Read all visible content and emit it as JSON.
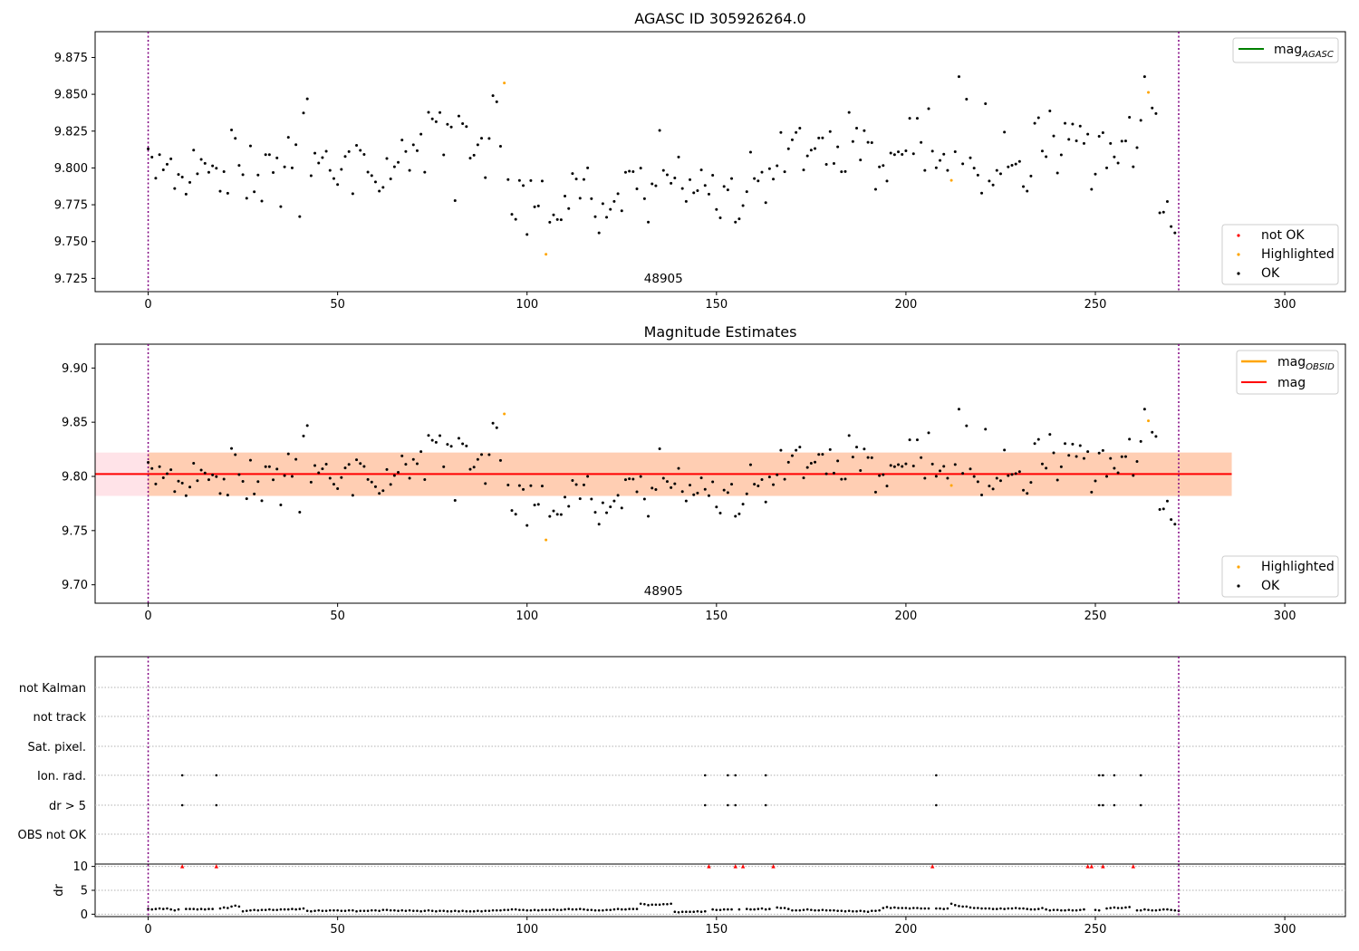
{
  "page": {
    "title": "AGASC ID 305926264.0"
  },
  "chart_data": [
    {
      "type": "scatter",
      "id": "p1",
      "title": "AGASC ID 305926264.0",
      "xlim": [
        -14,
        316
      ],
      "ylim": [
        9.716,
        9.8925
      ],
      "xticks": [
        0,
        50,
        100,
        150,
        200,
        250,
        300
      ],
      "yticks": [
        9.725,
        9.75,
        9.775,
        9.8,
        9.825,
        9.85,
        9.875
      ],
      "ytick_decimals": 3,
      "vlines": [
        0,
        272
      ],
      "annotation": {
        "text": "48905",
        "x": 136
      },
      "legend_top": [
        {
          "label": "mag",
          "sub": "AGASC",
          "color": "#008000"
        }
      ],
      "legend_bottom": [
        {
          "label": "not OK",
          "color": "#ff0000"
        },
        {
          "label": "Highlighted",
          "color": "#ffa500"
        },
        {
          "label": "OK",
          "color": "#000000"
        }
      ]
    },
    {
      "type": "scatter",
      "id": "p2",
      "title": "Magnitude Estimates",
      "xlim": [
        -14,
        316
      ],
      "ylim": [
        9.683,
        9.922
      ],
      "xticks": [
        0,
        50,
        100,
        150,
        200,
        250,
        300
      ],
      "yticks": [
        9.7,
        9.75,
        9.8,
        9.85,
        9.9
      ],
      "ytick_decimals": 2,
      "vlines": [
        0,
        272
      ],
      "annotation": {
        "text": "48905",
        "x": 136
      },
      "mag": 9.8022,
      "band_outer": [
        9.782,
        9.822
      ],
      "band_inner": [
        9.782,
        9.822
      ],
      "band_xrange": [
        -14,
        286
      ],
      "legend_top": [
        {
          "label": "mag",
          "sub": "OBSID",
          "color": "#ffa500"
        },
        {
          "label": "mag",
          "sub": "",
          "color": "#ff0000"
        }
      ],
      "legend_bottom": [
        {
          "label": "Highlighted",
          "color": "#ffa500"
        },
        {
          "label": "OK",
          "color": "#000000"
        }
      ]
    },
    {
      "type": "scatter",
      "id": "p3",
      "title": "",
      "xlim": [
        -14,
        316
      ],
      "xticks": [
        0,
        50,
        100,
        150,
        200,
        250,
        300
      ],
      "vlines": [
        0,
        272
      ],
      "flag_labels": [
        "not Kalman",
        "not track",
        "Sat. pixel.",
        "Ion. rad.",
        "dr > 5",
        "OBS not OK"
      ],
      "flag_points": {
        "Ion. rad.": [
          9,
          18,
          147,
          153,
          155,
          163,
          208,
          251,
          252,
          255,
          262
        ],
        "dr > 5": [
          9,
          18,
          147,
          153,
          155,
          163,
          208,
          251,
          252,
          255,
          262
        ]
      },
      "dr_ylabel": "dr",
      "dr_ylim": [
        -0.5,
        10.5
      ],
      "dr_yticks": [
        0,
        5,
        10
      ],
      "dr_clipped_x": [
        9,
        18,
        147,
        153,
        155,
        163,
        208,
        251,
        252,
        255,
        262
      ]
    }
  ],
  "series_mag": [
    9.8129,
    9.8073,
    9.793,
    9.809,
    9.7987,
    9.8025,
    9.8062,
    9.786,
    9.7956,
    9.7938,
    9.7822,
    9.7902,
    9.8121,
    9.796,
    9.8058,
    9.8031,
    9.797,
    9.8014,
    9.7998,
    9.7842,
    9.7975,
    9.7828,
    9.8258,
    9.8201,
    9.8017,
    9.7954,
    9.7794,
    9.8149,
    9.7838,
    9.7952,
    9.7775,
    9.809,
    9.809,
    9.7969,
    9.8068,
    9.7737,
    9.8007,
    9.8208,
    9.8,
    9.8158,
    9.767,
    9.8373,
    9.8469,
    9.7947,
    9.81,
    9.8033,
    9.807,
    9.8113,
    9.7983,
    9.7928,
    9.7887,
    9.799,
    9.8078,
    9.8111,
    9.7825,
    9.8153,
    9.8119,
    9.8092,
    9.7972,
    9.7948,
    9.7905,
    9.7843,
    9.7868,
    9.8064,
    9.7926,
    9.8008,
    9.8038,
    9.8189,
    9.8112,
    9.7983,
    9.8157,
    9.8117,
    9.8229,
    9.7971,
    9.8378,
    9.8333,
    9.8314,
    9.8376,
    9.8089,
    9.8296,
    9.8278,
    9.7778,
    9.8352,
    9.8301,
    9.8281,
    9.8066,
    9.8086,
    9.8157,
    9.8202,
    9.7934,
    9.82,
    9.8491,
    9.8449,
    9.8147,
    9.8577,
    9.7921,
    9.7685,
    9.7651,
    9.7915,
    9.788,
    9.7548,
    9.7914,
    9.7736,
    9.7742,
    9.7911,
    9.7414,
    9.7631,
    9.7681,
    9.765,
    9.7648,
    9.7809,
    9.7724,
    9.7962,
    9.7925,
    9.7794,
    9.7922,
    9.8,
    9.7791,
    9.7669,
    9.7559,
    9.7757,
    9.7665,
    9.7719,
    9.7773,
    9.7825,
    9.7709,
    9.797,
    9.7978,
    9.7975,
    9.7858,
    9.7999,
    9.7791,
    9.7632,
    9.7892,
    9.7879,
    9.8255,
    9.7983,
    9.7953,
    9.7896,
    9.7932,
    9.8074,
    9.786,
    9.7773,
    9.792,
    9.7831,
    9.7846,
    9.7986,
    9.7881,
    9.7822,
    9.795,
    9.7718,
    9.7661,
    9.7874,
    9.7851,
    9.7928,
    9.7632,
    9.7654,
    9.7744,
    9.7839,
    9.8107,
    9.7928,
    9.7912,
    9.7971,
    9.7764,
    9.7995,
    9.7924,
    9.8015,
    9.8241,
    9.7974,
    9.813,
    9.8191,
    9.8241,
    9.827,
    9.7986,
    9.8082,
    9.8121,
    9.8132,
    9.8203,
    9.8204,
    9.8024,
    9.8247,
    9.803,
    9.8143,
    9.7974,
    9.7976,
    9.8377,
    9.8179,
    9.827,
    9.8054,
    9.8253,
    9.8174,
    9.8172,
    9.7855,
    9.8007,
    9.8016,
    9.7911,
    9.8101,
    9.809,
    9.8109,
    9.8092,
    9.8116,
    9.8337,
    9.8096,
    9.8337,
    9.8173,
    9.7983,
    9.8402,
    9.8114,
    9.8001,
    9.8051,
    9.8093,
    9.7983,
    9.7916,
    9.811,
    9.862,
    9.8028,
    9.8467,
    9.8069,
    9.7999,
    9.7951,
    9.7829,
    9.8436,
    9.7911,
    9.7884,
    9.7983,
    9.796,
    9.8243,
    9.8007,
    9.8018,
    9.8026,
    9.8044,
    9.7873,
    9.7843,
    9.7945,
    9.8303,
    9.8341,
    9.8115,
    9.8076,
    9.8387,
    9.8217,
    9.7966,
    9.8089,
    9.8303,
    9.8194,
    9.8298,
    9.8184,
    9.8284,
    9.8166,
    9.8229,
    9.7855,
    9.7958,
    9.8215,
    9.8239,
    9.8,
    9.8166,
    9.8075,
    9.8033,
    9.8182,
    9.8183,
    9.8344,
    9.8008,
    9.8138,
    9.8323,
    9.862,
    9.8513,
    9.8407,
    9.8369,
    9.7695,
    9.77,
    9.7772,
    9.7602,
    9.7559
  ],
  "series_dr": [
    1.1,
    1.0,
    1.1,
    1.2,
    1.1,
    1.2,
    1.0,
    0.8,
    1.0,
    10.0,
    1.1,
    1.1,
    1.1,
    1.0,
    1.1,
    1.0,
    1.1,
    1.1,
    10.0,
    1.2,
    1.4,
    1.3,
    1.6,
    1.8,
    1.6,
    0.6,
    0.7,
    0.8,
    0.9,
    0.8,
    0.9,
    0.9,
    1.0,
    0.9,
    0.9,
    1.0,
    1.0,
    1.0,
    1.1,
    1.0,
    1.1,
    1.2,
    0.7,
    0.6,
    0.7,
    0.8,
    0.7,
    0.7,
    0.8,
    0.8,
    0.8,
    0.7,
    0.7,
    0.8,
    0.8,
    0.6,
    0.7,
    0.7,
    0.7,
    0.8,
    0.8,
    0.7,
    0.9,
    0.9,
    0.8,
    0.8,
    0.7,
    0.8,
    0.7,
    0.8,
    0.7,
    0.7,
    0.6,
    0.7,
    0.8,
    0.7,
    0.6,
    0.7,
    0.7,
    0.6,
    0.6,
    0.7,
    0.6,
    0.7,
    0.6,
    0.6,
    0.6,
    0.7,
    0.6,
    0.7,
    0.7,
    0.8,
    0.8,
    0.8,
    0.9,
    0.9,
    1.0,
    1.0,
    0.9,
    0.9,
    0.8,
    0.8,
    0.9,
    0.8,
    0.9,
    0.9,
    0.9,
    1.0,
    0.9,
    0.9,
    1.0,
    1.1,
    1.0,
    1.0,
    1.1,
    1.0,
    0.9,
    0.9,
    0.8,
    0.8,
    0.8,
    0.9,
    0.9,
    1.0,
    1.1,
    1.0,
    1.0,
    1.1,
    1.1,
    1.1,
    2.2,
    2.1,
    1.9,
    2.0,
    2.0,
    2.0,
    2.1,
    2.1,
    2.2,
    0.5,
    0.4,
    0.5,
    0.5,
    0.5,
    0.5,
    0.6,
    0.5,
    0.6,
    10.0,
    1.0,
    0.9,
    0.9,
    1.0,
    1.0,
    1.0,
    10.0,
    1.0,
    10.0,
    1.1,
    1.0,
    1.0,
    1.1,
    1.2,
    1.0,
    1.1,
    10.0,
    1.4,
    1.3,
    1.3,
    1.1,
    0.8,
    0.8,
    0.8,
    0.9,
    1.0,
    0.9,
    0.8,
    0.8,
    0.9,
    0.8,
    0.8,
    0.8,
    0.7,
    0.7,
    0.6,
    0.7,
    0.6,
    0.6,
    0.7,
    0.6,
    0.5,
    0.7,
    0.7,
    0.8,
    1.3,
    1.5,
    1.3,
    1.4,
    1.3,
    1.3,
    1.3,
    1.2,
    1.3,
    1.3,
    1.2,
    1.2,
    1.2,
    10.0,
    1.2,
    1.2,
    1.1,
    1.2,
    2.2,
    1.9,
    1.7,
    1.6,
    1.6,
    1.4,
    1.3,
    1.3,
    1.2,
    1.2,
    1.2,
    1.1,
    1.1,
    1.2,
    1.1,
    1.2,
    1.2,
    1.3,
    1.2,
    1.2,
    1.1,
    1.0,
    1.0,
    1.1,
    1.3,
    1.0,
    0.8,
    0.9,
    0.9,
    0.8,
    0.8,
    0.9,
    0.8,
    0.8,
    0.9,
    1.0,
    10.0,
    10.0,
    0.9,
    0.8,
    10.0,
    1.2,
    1.3,
    1.4,
    1.3,
    1.3,
    1.4,
    1.5,
    10.0,
    0.8,
    0.8,
    1.0,
    0.9,
    0.8,
    0.8,
    0.9,
    1.0,
    1.0,
    0.9,
    0.8,
    0.7
  ],
  "highlighted_x": [
    94,
    105,
    212,
    264
  ]
}
